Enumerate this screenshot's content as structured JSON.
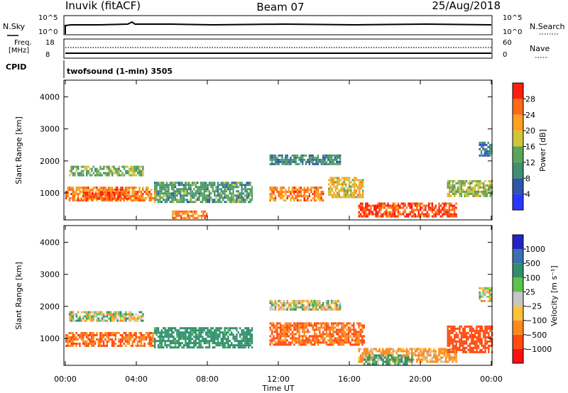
{
  "header": {
    "station": "Inuvik (fitACF)",
    "beam": "Beam 07",
    "date": "25/Aug/2018"
  },
  "noise_panel": {
    "left_label": "N.Sky",
    "right_label": "N.Search",
    "left_ticks": [
      "10^5",
      "10^0"
    ],
    "right_ticks": [
      "10^5",
      "10^0"
    ]
  },
  "freq_panel": {
    "left_label_line1": "Freq.",
    "left_label_line2": "[MHz]",
    "right_label": "Nave",
    "left_ticks": [
      "18",
      "8"
    ],
    "right_ticks": [
      "60",
      "0"
    ]
  },
  "cpid": {
    "label": "CPID",
    "text": "twofsound (1-min) 3505"
  },
  "x_axis": {
    "label": "Time UT",
    "ticks": [
      "00:00",
      "04:00",
      "08:00",
      "12:00",
      "16:00",
      "20:00",
      "00:00"
    ]
  },
  "power_panel": {
    "ylabel": "Slant Range [km]",
    "yticks": [
      "1000",
      "2000",
      "3000",
      "4000"
    ],
    "colorbar_label": "Power [dB]",
    "colorbar_ticks": [
      "4",
      "8",
      "12",
      "16",
      "20",
      "24",
      "28"
    ],
    "colors": [
      "#2a37ff",
      "#2c57a8",
      "#3f8f74",
      "#5aa55a",
      "#cfc43a",
      "#ffa020",
      "#ff6a14",
      "#ff1e0e"
    ]
  },
  "velocity_panel": {
    "ylabel": "Slant Range [km]",
    "yticks": [
      "1000",
      "2000",
      "3000",
      "4000"
    ],
    "colorbar_label": "Velocity [m s⁻¹]",
    "colorbar_ticks": [
      "1000",
      "500",
      "100",
      "25",
      "−25",
      "−100",
      "−500",
      "−1000"
    ],
    "colors": [
      "#2323c8",
      "#3a6fb0",
      "#2f8f6a",
      "#5bc24a",
      "#c6c6c6",
      "#ffc23a",
      "#ff8a1c",
      "#ff4a10",
      "#ff1010"
    ]
  },
  "chart_data": {
    "type": "heatmap",
    "x_range_hours": [
      0,
      24
    ],
    "y_range_km": [
      180,
      4500
    ],
    "grid": false,
    "power_regions_dB": [
      {
        "t": [
          0.2,
          4.4
        ],
        "r": [
          1550,
          1850
        ],
        "value": 14
      },
      {
        "t": [
          0.0,
          5.0
        ],
        "r": [
          800,
          1200
        ],
        "value": 24
      },
      {
        "t": [
          1.0,
          3.5
        ],
        "r": [
          850,
          1050
        ],
        "value": 28
      },
      {
        "t": [
          5.0,
          10.5
        ],
        "r": [
          700,
          1350
        ],
        "value": 12
      },
      {
        "t": [
          6.0,
          8.0
        ],
        "r": [
          250,
          450
        ],
        "value": 24
      },
      {
        "t": [
          11.5,
          14.5
        ],
        "r": [
          800,
          1200
        ],
        "value": 24
      },
      {
        "t": [
          11.5,
          15.5
        ],
        "r": [
          1900,
          2200
        ],
        "value": 10
      },
      {
        "t": [
          14.8,
          16.8
        ],
        "r": [
          900,
          1500
        ],
        "value": 20
      },
      {
        "t": [
          16.5,
          22.0
        ],
        "r": [
          300,
          700
        ],
        "value": 28
      },
      {
        "t": [
          21.5,
          24.0
        ],
        "r": [
          900,
          1400
        ],
        "value": 16
      },
      {
        "t": [
          23.3,
          24.0
        ],
        "r": [
          2200,
          2600
        ],
        "value": 8
      }
    ],
    "velocity_regions_ms": [
      {
        "t": [
          0.2,
          4.4
        ],
        "r": [
          1550,
          1850
        ],
        "value": 0
      },
      {
        "t": [
          0.0,
          5.0
        ],
        "r": [
          800,
          1200
        ],
        "value": -300
      },
      {
        "t": [
          5.0,
          10.5
        ],
        "r": [
          700,
          1350
        ],
        "value": 150
      },
      {
        "t": [
          11.5,
          15.5
        ],
        "r": [
          1900,
          2200
        ],
        "value": 0
      },
      {
        "t": [
          11.5,
          16.8
        ],
        "r": [
          800,
          1500
        ],
        "value": -300
      },
      {
        "t": [
          16.5,
          22.0
        ],
        "r": [
          300,
          700
        ],
        "value": -100
      },
      {
        "t": [
          16.8,
          19.5
        ],
        "r": [
          200,
          500
        ],
        "value": 100
      },
      {
        "t": [
          21.5,
          24.0
        ],
        "r": [
          600,
          1400
        ],
        "value": -400
      },
      {
        "t": [
          23.3,
          24.0
        ],
        "r": [
          2200,
          2600
        ],
        "value": 0
      }
    ]
  }
}
